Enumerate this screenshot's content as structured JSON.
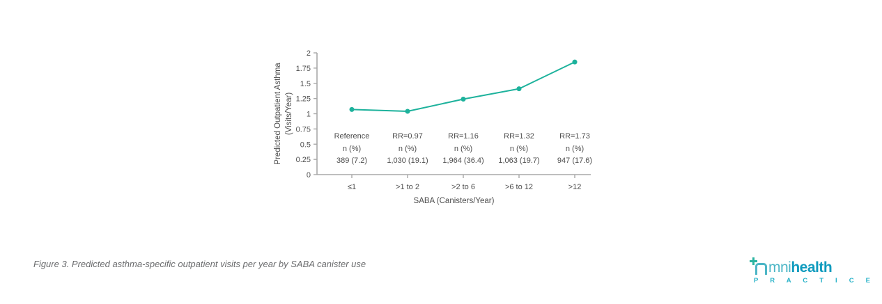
{
  "chart_data": {
    "type": "line",
    "categories": [
      "≤1",
      ">1 to 2",
      ">2 to 6",
      ">6 to 12",
      ">12"
    ],
    "values": [
      1.07,
      1.04,
      1.24,
      1.41,
      1.85
    ],
    "xlabel": "SABA (Canisters/Year)",
    "ylabel": "Predicted Outpatient Asthma (Visits/Year)",
    "ylabel_lines": [
      "Predicted Outpatient Asthma",
      "(Visits/Year)"
    ],
    "ylim": [
      0,
      2
    ],
    "yticks": [
      0,
      0.25,
      0.5,
      0.75,
      1,
      1.25,
      1.5,
      1.75,
      2
    ],
    "ytick_labels": [
      "0",
      "0.25",
      "0.5",
      "0.75",
      "1",
      "1.25",
      "1.5",
      "1.75",
      "2"
    ],
    "grid": false,
    "legend": false,
    "line_color": "#1db29c",
    "axis_color": "#a8a8a8",
    "text_color": "#4d4d4d",
    "annotations": [
      {
        "rr": "Reference",
        "n_label": "n (%)",
        "n_value": "389 (7.2)"
      },
      {
        "rr": "RR=0.97",
        "n_label": "n (%)",
        "n_value": "1,030 (19.1)"
      },
      {
        "rr": "RR=1.16",
        "n_label": "n (%)",
        "n_value": "1,964 (36.4)"
      },
      {
        "rr": "RR=1.32",
        "n_label": "n (%)",
        "n_value": "1,063 (19.7)"
      },
      {
        "rr": "RR=1.73",
        "n_label": "n (%)",
        "n_value": "947 (17.6)"
      }
    ]
  },
  "caption": {
    "text": "Figure 3. Predicted asthma-specific outpatient visits per year by SABA canister use"
  },
  "logo": {
    "brand_prefix": "mni",
    "brand_suffix": "health",
    "tagline": "P R A C T I C E",
    "colors": {
      "plus": "#2bb4a1",
      "o_glyph": "#4db6c6",
      "prefix": "#4db6c6",
      "suffix": "#0f9bbe",
      "tagline": "#2ab3c9"
    }
  }
}
